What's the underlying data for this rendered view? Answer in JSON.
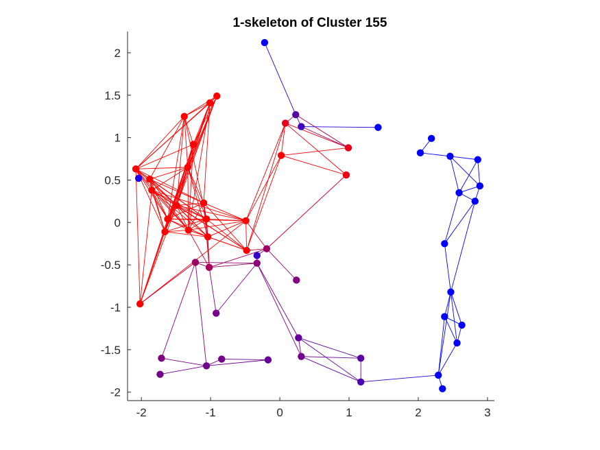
{
  "chart_data": {
    "type": "scatter",
    "title": "1-skeleton of Cluster 155",
    "xlabel": "",
    "ylabel": "",
    "xlim": [
      -2.2,
      3.1
    ],
    "ylim": [
      -2.1,
      2.25
    ],
    "xticks": [
      -2,
      -1,
      0,
      1,
      2,
      3
    ],
    "xtick_labels": [
      "-2",
      "-1",
      "0",
      "1",
      "2",
      "3"
    ],
    "yticks": [
      -2,
      -1.5,
      -1,
      -0.5,
      0,
      0.5,
      1,
      1.5,
      2
    ],
    "ytick_labels": [
      "-2",
      "-1.5",
      "-1",
      "-0.5",
      "0",
      "0.5",
      "1",
      "1.5",
      "2"
    ],
    "grid": false,
    "legend": "none",
    "colors": {
      "red": "#ff0000",
      "blue": "#0000ff",
      "axis": "#262626"
    },
    "nodes": [
      {
        "x": -0.22,
        "y": 2.12,
        "c": 0.0
      },
      {
        "x": 0.23,
        "y": 1.27,
        "c": 0.35
      },
      {
        "x": 0.31,
        "y": 1.13,
        "c": 0.25
      },
      {
        "x": 1.42,
        "y": 1.12,
        "c": 0.0
      },
      {
        "x": 0.08,
        "y": 1.17,
        "c": 0.9
      },
      {
        "x": 0.99,
        "y": 0.88,
        "c": 0.9
      },
      {
        "x": 0.02,
        "y": 0.79,
        "c": 1.0
      },
      {
        "x": 0.96,
        "y": 0.56,
        "c": 0.95
      },
      {
        "x": -0.91,
        "y": 1.49,
        "c": 1.0
      },
      {
        "x": -1.01,
        "y": 1.41,
        "c": 1.0
      },
      {
        "x": -1.38,
        "y": 1.25,
        "c": 1.0
      },
      {
        "x": -1.25,
        "y": 0.92,
        "c": 1.0
      },
      {
        "x": -1.33,
        "y": 0.65,
        "c": 1.0
      },
      {
        "x": -2.08,
        "y": 0.63,
        "c": 1.0
      },
      {
        "x": -2.04,
        "y": 0.52,
        "c": 0.1
      },
      {
        "x": -1.88,
        "y": 0.51,
        "c": 1.0
      },
      {
        "x": -1.85,
        "y": 0.38,
        "c": 1.0
      },
      {
        "x": -1.49,
        "y": 0.2,
        "c": 1.0
      },
      {
        "x": -1.1,
        "y": 0.23,
        "c": 1.0
      },
      {
        "x": -1.62,
        "y": 0.04,
        "c": 1.0
      },
      {
        "x": -1.06,
        "y": 0.04,
        "c": 1.0
      },
      {
        "x": -0.49,
        "y": 0.02,
        "c": 1.0
      },
      {
        "x": -1.66,
        "y": -0.11,
        "c": 1.0
      },
      {
        "x": -1.32,
        "y": -0.09,
        "c": 1.0
      },
      {
        "x": -1.04,
        "y": -0.17,
        "c": 1.0
      },
      {
        "x": -0.48,
        "y": -0.33,
        "c": 1.0
      },
      {
        "x": -0.19,
        "y": -0.31,
        "c": 0.6
      },
      {
        "x": -0.33,
        "y": -0.39,
        "c": 0.2
      },
      {
        "x": -1.22,
        "y": -0.47,
        "c": 0.6
      },
      {
        "x": -1.02,
        "y": -0.53,
        "c": 0.65
      },
      {
        "x": -0.33,
        "y": -0.48,
        "c": 0.55
      },
      {
        "x": 0.24,
        "y": -0.68,
        "c": 0.5
      },
      {
        "x": -2.02,
        "y": -0.96,
        "c": 1.0
      },
      {
        "x": -0.92,
        "y": -1.07,
        "c": 0.45
      },
      {
        "x": 0.27,
        "y": -1.36,
        "c": 0.4
      },
      {
        "x": 0.31,
        "y": -1.58,
        "c": 0.45
      },
      {
        "x": 1.17,
        "y": -1.6,
        "c": 0.35
      },
      {
        "x": 1.17,
        "y": -1.88,
        "c": 0.3
      },
      {
        "x": -1.71,
        "y": -1.6,
        "c": 0.5
      },
      {
        "x": -0.84,
        "y": -1.61,
        "c": 0.45
      },
      {
        "x": -0.17,
        "y": -1.62,
        "c": 0.4
      },
      {
        "x": -1.06,
        "y": -1.69,
        "c": 0.45
      },
      {
        "x": -1.73,
        "y": -1.79,
        "c": 0.45
      },
      {
        "x": 2.19,
        "y": 0.99,
        "c": 0.0
      },
      {
        "x": 2.03,
        "y": 0.82,
        "c": 0.0
      },
      {
        "x": 2.46,
        "y": 0.78,
        "c": 0.0
      },
      {
        "x": 2.86,
        "y": 0.74,
        "c": 0.0
      },
      {
        "x": 2.89,
        "y": 0.43,
        "c": 0.0
      },
      {
        "x": 2.59,
        "y": 0.35,
        "c": 0.0
      },
      {
        "x": 2.82,
        "y": 0.25,
        "c": 0.0
      },
      {
        "x": 2.38,
        "y": -0.25,
        "c": 0.0
      },
      {
        "x": 2.47,
        "y": -0.82,
        "c": 0.0
      },
      {
        "x": 2.38,
        "y": -1.11,
        "c": 0.0
      },
      {
        "x": 2.63,
        "y": -1.21,
        "c": 0.0
      },
      {
        "x": 2.56,
        "y": -1.42,
        "c": 0.0
      },
      {
        "x": 2.29,
        "y": -1.8,
        "c": 0.0
      },
      {
        "x": 2.35,
        "y": -1.96,
        "c": 0.0
      }
    ],
    "edges": [
      [
        0,
        1
      ],
      [
        1,
        2
      ],
      [
        2,
        3
      ],
      [
        1,
        5
      ],
      [
        2,
        5
      ],
      [
        4,
        5
      ],
      [
        4,
        6
      ],
      [
        4,
        7
      ],
      [
        6,
        5
      ],
      [
        6,
        7
      ],
      [
        4,
        21
      ],
      [
        6,
        21
      ],
      [
        6,
        25
      ],
      [
        4,
        25
      ],
      [
        7,
        26
      ],
      [
        1,
        4
      ],
      [
        8,
        9
      ],
      [
        8,
        10
      ],
      [
        8,
        11
      ],
      [
        8,
        12
      ],
      [
        8,
        13
      ],
      [
        8,
        17
      ],
      [
        8,
        19
      ],
      [
        8,
        22
      ],
      [
        9,
        10
      ],
      [
        9,
        11
      ],
      [
        9,
        12
      ],
      [
        9,
        13
      ],
      [
        9,
        17
      ],
      [
        9,
        18
      ],
      [
        9,
        19
      ],
      [
        9,
        23
      ],
      [
        10,
        11
      ],
      [
        10,
        12
      ],
      [
        10,
        13
      ],
      [
        10,
        15
      ],
      [
        10,
        17
      ],
      [
        10,
        19
      ],
      [
        10,
        20
      ],
      [
        11,
        12
      ],
      [
        11,
        13
      ],
      [
        11,
        17
      ],
      [
        11,
        19
      ],
      [
        11,
        22
      ],
      [
        11,
        23
      ],
      [
        11,
        32
      ],
      [
        12,
        13
      ],
      [
        12,
        15
      ],
      [
        12,
        16
      ],
      [
        12,
        17
      ],
      [
        12,
        18
      ],
      [
        12,
        19
      ],
      [
        12,
        20
      ],
      [
        12,
        22
      ],
      [
        12,
        23
      ],
      [
        12,
        24
      ],
      [
        13,
        15
      ],
      [
        13,
        16
      ],
      [
        13,
        17
      ],
      [
        13,
        18
      ],
      [
        13,
        19
      ],
      [
        13,
        20
      ],
      [
        13,
        22
      ],
      [
        13,
        23
      ],
      [
        13,
        32
      ],
      [
        15,
        16
      ],
      [
        15,
        17
      ],
      [
        15,
        18
      ],
      [
        15,
        19
      ],
      [
        15,
        20
      ],
      [
        15,
        22
      ],
      [
        15,
        23
      ],
      [
        15,
        24
      ],
      [
        16,
        17
      ],
      [
        16,
        19
      ],
      [
        16,
        20
      ],
      [
        16,
        21
      ],
      [
        16,
        22
      ],
      [
        16,
        23
      ],
      [
        16,
        24
      ],
      [
        16,
        25
      ],
      [
        16,
        32
      ],
      [
        17,
        18
      ],
      [
        17,
        19
      ],
      [
        17,
        20
      ],
      [
        17,
        21
      ],
      [
        17,
        22
      ],
      [
        17,
        23
      ],
      [
        17,
        24
      ],
      [
        17,
        25
      ],
      [
        17,
        32
      ],
      [
        18,
        19
      ],
      [
        18,
        20
      ],
      [
        18,
        21
      ],
      [
        18,
        23
      ],
      [
        18,
        24
      ],
      [
        18,
        25
      ],
      [
        18,
        29
      ],
      [
        19,
        20
      ],
      [
        19,
        21
      ],
      [
        19,
        22
      ],
      [
        19,
        23
      ],
      [
        19,
        24
      ],
      [
        19,
        32
      ],
      [
        20,
        21
      ],
      [
        20,
        22
      ],
      [
        20,
        23
      ],
      [
        20,
        24
      ],
      [
        20,
        25
      ],
      [
        20,
        29
      ],
      [
        21,
        23
      ],
      [
        21,
        24
      ],
      [
        21,
        25
      ],
      [
        21,
        26
      ],
      [
        21,
        32
      ],
      [
        22,
        23
      ],
      [
        22,
        24
      ],
      [
        22,
        32
      ],
      [
        23,
        24
      ],
      [
        23,
        25
      ],
      [
        23,
        29
      ],
      [
        24,
        25
      ],
      [
        24,
        29
      ],
      [
        25,
        26
      ],
      [
        26,
        27
      ],
      [
        26,
        29
      ],
      [
        27,
        30
      ],
      [
        28,
        29
      ],
      [
        28,
        30
      ],
      [
        29,
        30
      ],
      [
        26,
        31
      ],
      [
        30,
        33
      ],
      [
        28,
        38
      ],
      [
        28,
        32
      ],
      [
        28,
        41
      ],
      [
        29,
        33
      ],
      [
        30,
        34
      ],
      [
        30,
        35
      ],
      [
        34,
        35
      ],
      [
        34,
        36
      ],
      [
        34,
        37
      ],
      [
        35,
        36
      ],
      [
        35,
        37
      ],
      [
        36,
        37
      ],
      [
        37,
        55
      ],
      [
        38,
        41
      ],
      [
        39,
        40
      ],
      [
        41,
        39
      ],
      [
        41,
        42
      ],
      [
        41,
        40
      ],
      [
        43,
        44
      ],
      [
        44,
        45
      ],
      [
        45,
        46
      ],
      [
        45,
        47
      ],
      [
        46,
        47
      ],
      [
        46,
        48
      ],
      [
        45,
        48
      ],
      [
        47,
        48
      ],
      [
        47,
        49
      ],
      [
        48,
        49
      ],
      [
        48,
        50
      ],
      [
        49,
        50
      ],
      [
        50,
        51
      ],
      [
        49,
        51
      ],
      [
        51,
        52
      ],
      [
        51,
        53
      ],
      [
        51,
        54
      ],
      [
        52,
        53
      ],
      [
        52,
        54
      ],
      [
        53,
        54
      ],
      [
        52,
        55
      ],
      [
        54,
        55
      ],
      [
        51,
        55
      ],
      [
        55,
        56
      ]
    ]
  }
}
